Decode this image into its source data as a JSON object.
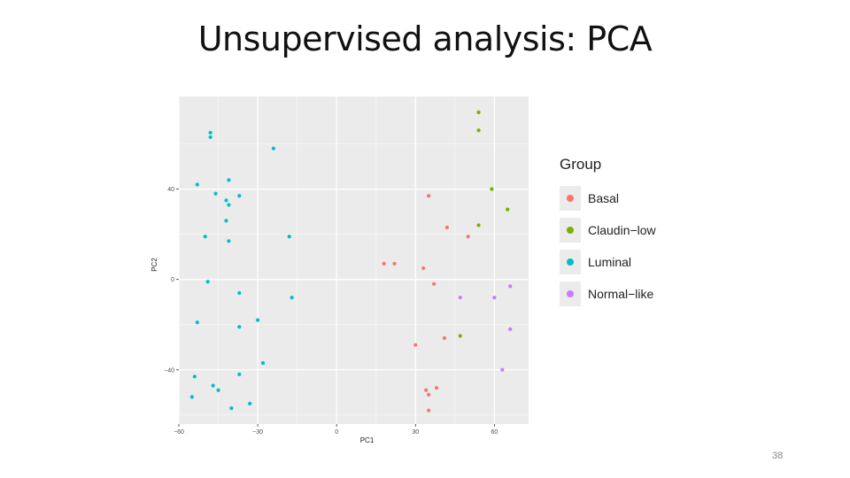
{
  "slide": {
    "title": "Unsupervised analysis: PCA",
    "page_number": "38"
  },
  "colors": {
    "Basal": "#f8766d",
    "Claudin-low": "#7cae00",
    "Luminal": "#00bfc4",
    "Normal-like": "#c77cff"
  },
  "legend": {
    "title": "Group",
    "items": [
      {
        "label": "Basal",
        "group": "Basal"
      },
      {
        "label": "Claudin−low",
        "group": "Claudin-low"
      },
      {
        "label": "Luminal",
        "group": "Luminal"
      },
      {
        "label": "Normal−like",
        "group": "Normal-like"
      }
    ]
  },
  "chart_data": {
    "type": "scatter",
    "xlabel": "PC1",
    "ylabel": "PC2",
    "xlim": [
      -60,
      73
    ],
    "ylim": [
      -64,
      81
    ],
    "xticks": [
      -60,
      -30,
      0,
      30,
      60
    ],
    "xtick_labels": [
      "−60",
      "−30",
      "0",
      "30",
      "60"
    ],
    "yticks": [
      -40,
      0,
      40
    ],
    "ytick_labels": [
      "−40",
      "0",
      "40"
    ],
    "grid": true,
    "legend_position": "right",
    "series": [
      {
        "name": "Basal",
        "points": [
          [
            35,
            37
          ],
          [
            42,
            23
          ],
          [
            50,
            19
          ],
          [
            18,
            7
          ],
          [
            22,
            7
          ],
          [
            33,
            5
          ],
          [
            37,
            -2
          ],
          [
            41,
            -26
          ],
          [
            30,
            -29
          ],
          [
            38,
            -48
          ],
          [
            34,
            -49
          ],
          [
            35,
            -51
          ],
          [
            35,
            -58
          ]
        ]
      },
      {
        "name": "Claudin-low",
        "points": [
          [
            54,
            74
          ],
          [
            54,
            66
          ],
          [
            59,
            40
          ],
          [
            65,
            31
          ],
          [
            54,
            24
          ],
          [
            47,
            -25
          ]
        ]
      },
      {
        "name": "Luminal",
        "points": [
          [
            -48,
            65
          ],
          [
            -48,
            63
          ],
          [
            -24,
            58
          ],
          [
            -41,
            44
          ],
          [
            -53,
            42
          ],
          [
            -46,
            38
          ],
          [
            -37,
            37
          ],
          [
            -42,
            35
          ],
          [
            -41,
            33
          ],
          [
            -42,
            26
          ],
          [
            -50,
            19
          ],
          [
            -18,
            19
          ],
          [
            -41,
            17
          ],
          [
            -49,
            -1
          ],
          [
            -37,
            -6
          ],
          [
            -17,
            -8
          ],
          [
            -30,
            -18
          ],
          [
            -53,
            -19
          ],
          [
            -37,
            -21
          ],
          [
            -28,
            -37
          ],
          [
            -37,
            -42
          ],
          [
            -54,
            -43
          ],
          [
            -47,
            -47
          ],
          [
            -45,
            -49
          ],
          [
            -55,
            -52
          ],
          [
            -33,
            -55
          ],
          [
            -40,
            -57
          ]
        ]
      },
      {
        "name": "Normal-like",
        "points": [
          [
            66,
            -3
          ],
          [
            47,
            -8
          ],
          [
            60,
            -8
          ],
          [
            66,
            -22
          ],
          [
            63,
            -40
          ]
        ]
      }
    ]
  }
}
